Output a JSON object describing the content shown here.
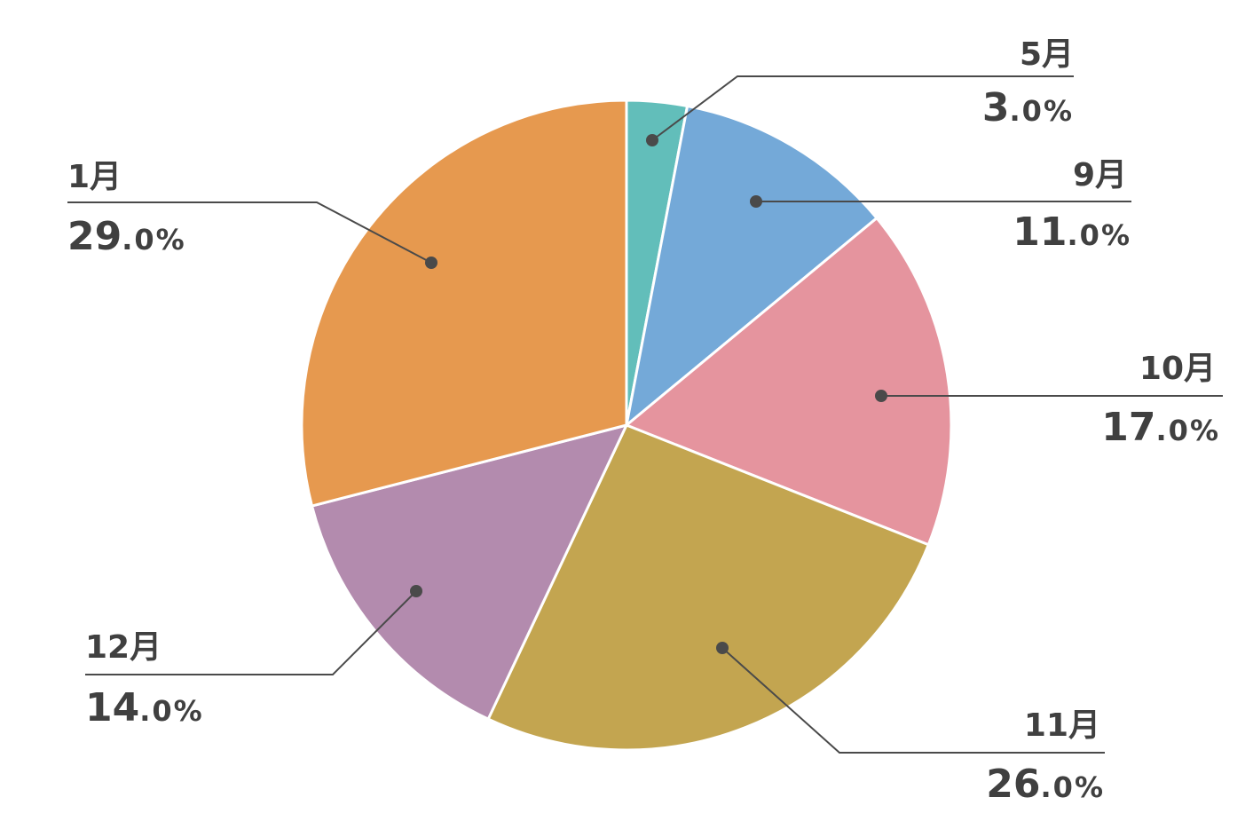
{
  "chart_data": {
    "type": "pie",
    "title": "",
    "colors": {
      "label_text": "#404040",
      "leader_line": "#4a4a4a",
      "slice_border": "#ffffff"
    },
    "slices": [
      {
        "label": "5月",
        "value": 3.0,
        "pct_int": "3",
        "pct_dec": ".0%",
        "color": "#62BEBA"
      },
      {
        "label": "9月",
        "value": 11.0,
        "pct_int": "11",
        "pct_dec": ".0%",
        "color": "#74A9D8"
      },
      {
        "label": "10月",
        "value": 17.0,
        "pct_int": "17",
        "pct_dec": ".0%",
        "color": "#E5949E"
      },
      {
        "label": "11月",
        "value": 26.0,
        "pct_int": "26",
        "pct_dec": ".0%",
        "color": "#C3A550"
      },
      {
        "label": "12月",
        "value": 14.0,
        "pct_int": "14",
        "pct_dec": ".0%",
        "color": "#B38BAE"
      },
      {
        "label": "1月",
        "value": 29.0,
        "pct_int": "29",
        "pct_dec": ".0%",
        "color": "#E6994F"
      }
    ]
  }
}
